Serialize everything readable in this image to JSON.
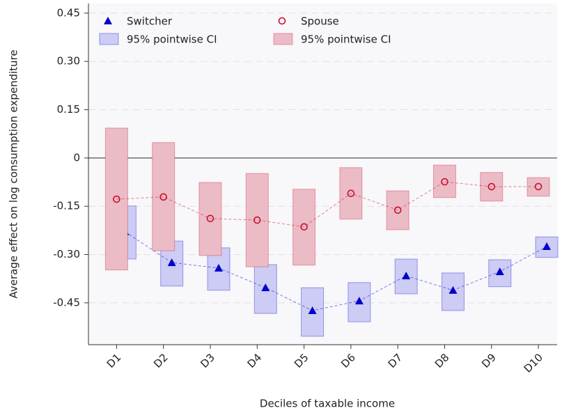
{
  "chart_data": {
    "type": "point-ci",
    "x_label": "Deciles of taxable income",
    "y_label": "Average effect on log consumption expenditure",
    "categories": [
      "D1",
      "D2",
      "D3",
      "D4",
      "D5",
      "D6",
      "D7",
      "D8",
      "D9",
      "D10"
    ],
    "ylim": [
      -0.58,
      0.48
    ],
    "yticks": [
      0.45,
      {
        "value": 0.3,
        "label": "0.30"
      },
      0.15,
      0,
      -0.15,
      {
        "value": -0.3,
        "label": "-0.30"
      },
      -0.45
    ],
    "grid": true,
    "reference_line": 0,
    "series": [
      {
        "name": "Switcher",
        "color": "#0000cc",
        "marker": "triangle",
        "values": [
          -0.229,
          -0.325,
          -0.342,
          -0.403,
          -0.474,
          -0.444,
          -0.366,
          -0.411,
          -0.353,
          -0.275
        ],
        "ci": {
          "name": "95% pointwise CI",
          "color": "#ccccf5",
          "low": [
            -0.314,
            -0.398,
            -0.411,
            -0.483,
            -0.554,
            -0.509,
            -0.422,
            -0.474,
            -0.4,
            -0.309
          ],
          "high": [
            -0.149,
            -0.258,
            -0.279,
            -0.331,
            -0.403,
            -0.387,
            -0.314,
            -0.357,
            -0.316,
            -0.245
          ]
        }
      },
      {
        "name": "Spouse",
        "color": "#c8102e",
        "marker": "circle",
        "values": [
          -0.128,
          -0.121,
          -0.188,
          -0.193,
          -0.214,
          -0.11,
          -0.162,
          -0.074,
          -0.089,
          -0.089
        ],
        "ci": {
          "name": "95% pointwise CI",
          "color": "#ebbcc6",
          "low": [
            -0.348,
            -0.288,
            -0.303,
            -0.338,
            -0.333,
            -0.19,
            -0.223,
            -0.123,
            -0.134,
            -0.119
          ],
          "high": [
            0.093,
            0.048,
            -0.076,
            -0.048,
            -0.097,
            -0.03,
            -0.102,
            -0.022,
            -0.045,
            -0.061
          ]
        }
      }
    ]
  }
}
